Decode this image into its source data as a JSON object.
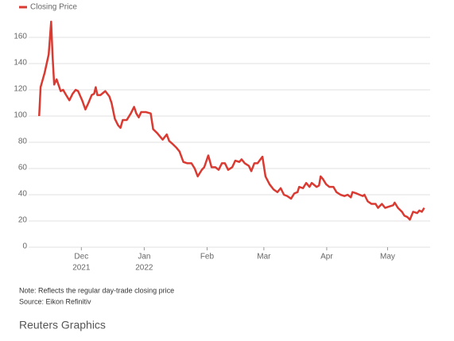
{
  "chart_data": {
    "type": "line",
    "note": "Note: Reflects the regular day-trade closing price",
    "source": "Source: Eikon Refinitiv",
    "credit": "Reuters Graphics",
    "legend": "top-left",
    "grid": true,
    "xlim": [
      -26,
      172
    ],
    "ylim": [
      0,
      175
    ],
    "yticks": [
      0,
      20,
      40,
      60,
      80,
      100,
      120,
      140,
      160
    ],
    "xticks": [
      {
        "value": 0,
        "label": "Dec",
        "year": "2021"
      },
      {
        "value": 31,
        "label": "Jan",
        "year": "2022"
      },
      {
        "value": 62,
        "label": "Feb"
      },
      {
        "value": 90,
        "label": "Mar"
      },
      {
        "value": 121,
        "label": "Apr"
      },
      {
        "value": 151,
        "label": "May"
      }
    ],
    "series": [
      {
        "name": "Closing Price",
        "color": "#d93a32",
        "x": [
          -20.8,
          -20.1,
          -18.1,
          -16.1,
          -14.9,
          -14.2,
          -13.4,
          -12.2,
          -10.2,
          -9.0,
          -7.5,
          -5.9,
          -4.3,
          -2.8,
          -1.6,
          0.4,
          2.0,
          3.5,
          5.1,
          6.3,
          7.1,
          7.9,
          9.4,
          11.8,
          13.8,
          14.9,
          16.5,
          18.1,
          19.3,
          20.4,
          22.4,
          24.4,
          26.0,
          27.1,
          28.3,
          29.5,
          31.9,
          34.2,
          35.4,
          37.4,
          40.1,
          42.1,
          43.3,
          44.8,
          46.8,
          48.4,
          50.3,
          52.3,
          54.3,
          55.9,
          57.4,
          59.4,
          60.6,
          62.6,
          64.2,
          66.1,
          67.7,
          69.3,
          70.8,
          72.4,
          74.4,
          75.9,
          77.9,
          79.0,
          80.6,
          82.6,
          83.8,
          85.3,
          86.9,
          89.3,
          90.8,
          92.8,
          94.8,
          96.7,
          98.3,
          99.9,
          101.5,
          103.4,
          105.0,
          106.6,
          107.4,
          109.3,
          110.9,
          112.5,
          113.6,
          116.0,
          117.2,
          118.0,
          119.1,
          120.7,
          122.3,
          124.3,
          125.8,
          127.8,
          129.8,
          131.3,
          132.9,
          133.7,
          135.7,
          137.2,
          138.8,
          139.6,
          141.2,
          143.1,
          145.1,
          146.3,
          148.2,
          149.8,
          151.8,
          153.8,
          154.5,
          156.1,
          158.1,
          159.3,
          160.8,
          162.0,
          163.6,
          165.6,
          166.7,
          167.9,
          169.1
        ],
        "values": [
          100,
          122,
          133,
          147,
          172,
          146,
          124,
          128,
          119,
          120,
          116,
          112,
          117,
          120,
          119,
          112,
          105,
          110,
          116,
          117,
          122,
          116,
          116,
          119,
          115,
          110,
          98,
          93,
          91,
          97,
          97,
          102,
          107,
          102,
          99,
          103,
          103,
          102,
          90,
          87,
          82,
          86,
          81,
          79,
          76,
          73,
          65,
          64,
          64,
          60,
          54,
          59,
          61,
          70,
          61,
          61,
          59,
          64,
          64,
          59,
          61,
          66,
          65,
          67,
          64,
          62,
          58,
          64,
          64,
          69,
          54,
          48,
          44,
          42,
          45,
          40,
          39,
          37,
          41,
          42,
          46,
          45,
          49,
          46,
          49,
          46,
          47,
          54,
          52,
          48,
          46,
          46,
          42,
          40,
          39,
          40,
          38,
          42,
          41,
          40,
          39,
          40,
          35,
          33,
          33,
          30,
          33,
          30,
          31,
          32,
          34,
          30,
          27,
          24,
          23,
          21,
          27,
          26,
          28,
          27,
          30
        ]
      }
    ]
  }
}
